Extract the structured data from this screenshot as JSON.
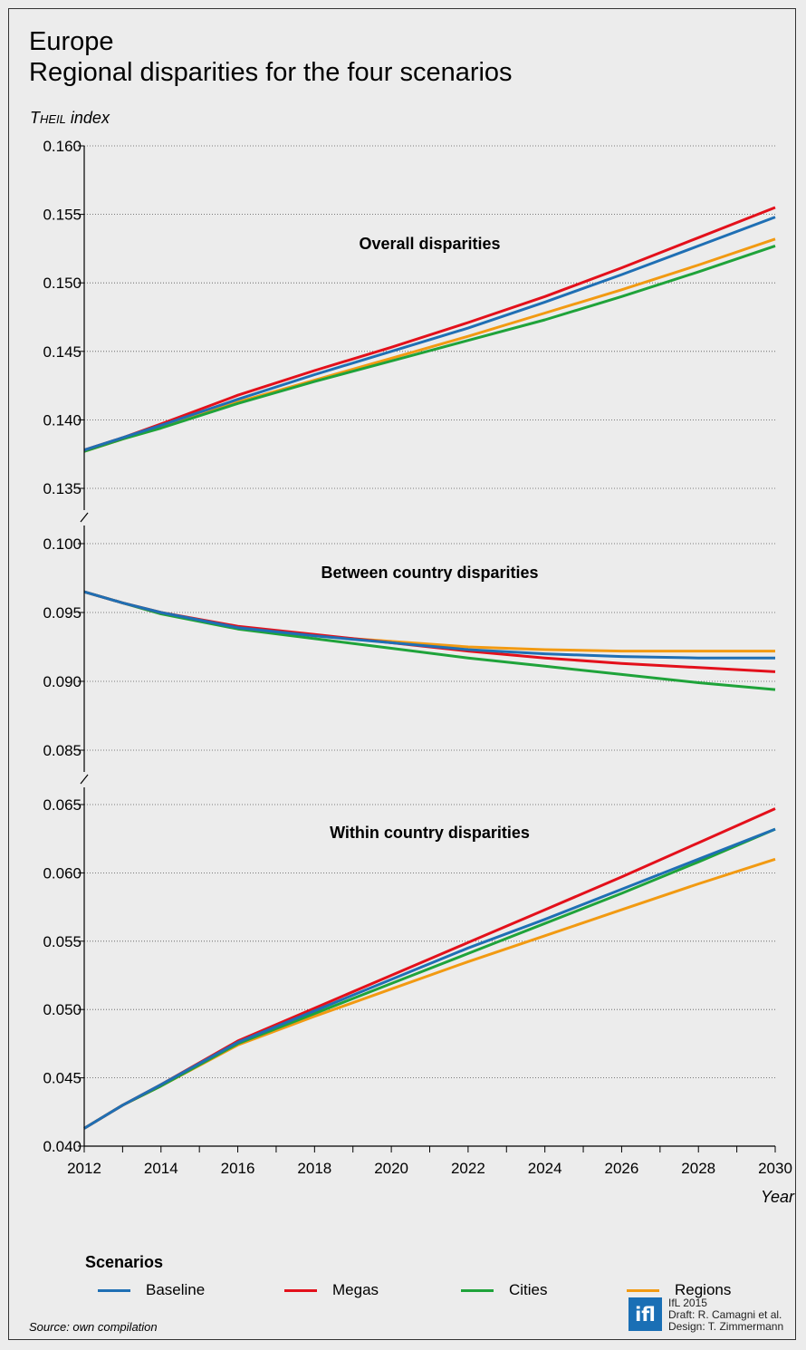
{
  "header": {
    "title_line1": "Europe",
    "title_line2": "Regional disparities for the four scenarios",
    "ylabel_prefix": "Theil",
    "ylabel_suffix": " index",
    "xlabel": "Year"
  },
  "legend": {
    "title": "Scenarios",
    "items": [
      {
        "label": "Baseline",
        "color": "#1f6fb4"
      },
      {
        "label": "Megas",
        "color": "#e3101b"
      },
      {
        "label": "Cities",
        "color": "#1fa33a"
      },
      {
        "label": "Regions",
        "color": "#f29a12"
      }
    ]
  },
  "footer": {
    "source": "Source: own compilation",
    "logo_text": "ifl",
    "credit1": "IfL 2015",
    "credit2": "Draft: R. Camagni et al.",
    "credit3": "Design: T. Zimmermann"
  },
  "chart_data": [
    {
      "type": "line",
      "title": "Overall disparities",
      "x": [
        2012,
        2013,
        2014,
        2016,
        2018,
        2020,
        2022,
        2024,
        2026,
        2028,
        2030
      ],
      "ylim": [
        0.135,
        0.16
      ],
      "yticks": [
        "0.135",
        "0.140",
        "0.145",
        "0.150",
        "0.155",
        "0.160"
      ],
      "series": [
        {
          "name": "Baseline",
          "values": [
            0.1378,
            0.1387,
            0.1396,
            0.1415,
            0.1433,
            0.145,
            0.1467,
            0.1486,
            0.1506,
            0.1527,
            0.1548
          ]
        },
        {
          "name": "Megas",
          "values": [
            0.1378,
            0.1387,
            0.1397,
            0.1418,
            0.1436,
            0.1453,
            0.1471,
            0.149,
            0.1511,
            0.1533,
            0.1555
          ]
        },
        {
          "name": "Cities",
          "values": [
            0.1377,
            0.1386,
            0.1394,
            0.1412,
            0.1428,
            0.1443,
            0.1458,
            0.1473,
            0.149,
            0.1508,
            0.1527
          ]
        },
        {
          "name": "Regions",
          "values": [
            0.1377,
            0.1386,
            0.1395,
            0.1413,
            0.1429,
            0.1445,
            0.1461,
            0.1478,
            0.1495,
            0.1513,
            0.1532
          ]
        }
      ]
    },
    {
      "type": "line",
      "title": "Between country disparities",
      "x": [
        2012,
        2013,
        2014,
        2016,
        2018,
        2020,
        2022,
        2024,
        2026,
        2028,
        2030
      ],
      "ylim": [
        0.085,
        0.1
      ],
      "yticks": [
        "0.085",
        "0.090",
        "0.095",
        "0.100"
      ],
      "series": [
        {
          "name": "Baseline",
          "values": [
            0.0965,
            0.0957,
            0.095,
            0.0939,
            0.0933,
            0.0928,
            0.0923,
            0.092,
            0.0918,
            0.0917,
            0.0917
          ]
        },
        {
          "name": "Megas",
          "values": [
            0.0965,
            0.0957,
            0.095,
            0.094,
            0.0934,
            0.0928,
            0.0922,
            0.0917,
            0.0913,
            0.091,
            0.0907
          ]
        },
        {
          "name": "Cities",
          "values": [
            0.0965,
            0.0957,
            0.0949,
            0.0938,
            0.0931,
            0.0924,
            0.0917,
            0.0911,
            0.0905,
            0.0899,
            0.0894
          ]
        },
        {
          "name": "Regions",
          "values": [
            0.0965,
            0.0957,
            0.095,
            0.0939,
            0.0933,
            0.0929,
            0.0925,
            0.0923,
            0.0922,
            0.0922,
            0.0922
          ]
        }
      ]
    },
    {
      "type": "line",
      "title": "Within country disparities",
      "x": [
        2012,
        2013,
        2014,
        2016,
        2018,
        2020,
        2022,
        2024,
        2026,
        2028,
        2030
      ],
      "ylim": [
        0.04,
        0.065
      ],
      "yticks": [
        "0.040",
        "0.045",
        "0.050",
        "0.055",
        "0.060",
        "0.065"
      ],
      "xticks": [
        "2012",
        "2014",
        "2016",
        "2018",
        "2020",
        "2022",
        "2024",
        "2026",
        "2028",
        "2030"
      ],
      "series": [
        {
          "name": "Baseline",
          "values": [
            0.0413,
            0.043,
            0.0445,
            0.0476,
            0.0499,
            0.0522,
            0.0545,
            0.0566,
            0.0588,
            0.061,
            0.0632
          ]
        },
        {
          "name": "Megas",
          "values": [
            0.0413,
            0.043,
            0.0445,
            0.0477,
            0.0501,
            0.0525,
            0.0549,
            0.0573,
            0.0597,
            0.0622,
            0.0647
          ]
        },
        {
          "name": "Cities",
          "values": [
            0.0413,
            0.043,
            0.0444,
            0.0475,
            0.0497,
            0.0519,
            0.0541,
            0.0563,
            0.0585,
            0.0608,
            0.0632
          ]
        },
        {
          "name": "Regions",
          "values": [
            0.0413,
            0.043,
            0.0444,
            0.0474,
            0.0495,
            0.0515,
            0.0535,
            0.0554,
            0.0573,
            0.0592,
            0.061
          ]
        }
      ]
    }
  ]
}
